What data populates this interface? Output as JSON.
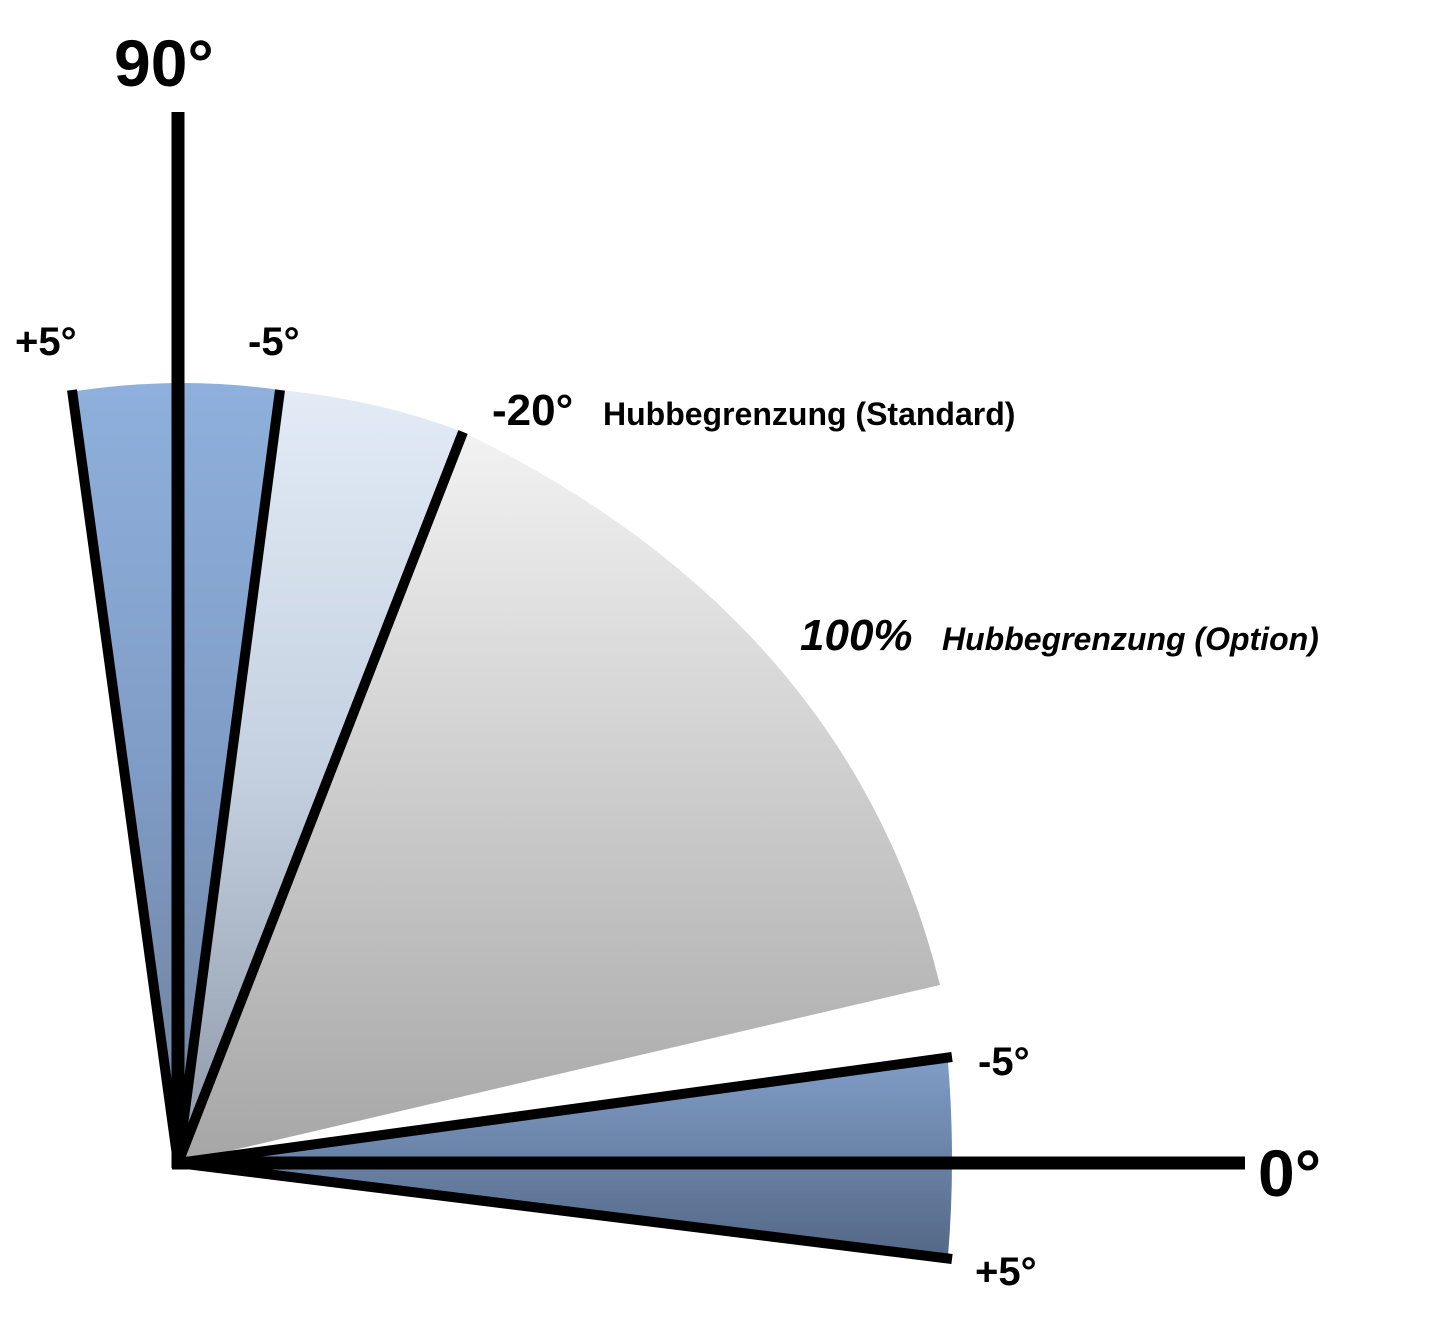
{
  "labels": {
    "axis_90": "90°",
    "axis_0": "0°",
    "top_plus5": "+5°",
    "top_minus5": "-5°",
    "minus20_value": "-20°",
    "minus20_text": "Hubbegrenzung (Standard)",
    "option_value": "100%",
    "option_text": "Hubbegrenzung (Option)",
    "bottom_minus5": "-5°",
    "bottom_plus5": "+5°"
  },
  "colors": {
    "blue_sector": "#7f9cc6",
    "light_blue_sector": "#d6e2f0",
    "gray_sector": "#c8c8c8",
    "lines": "#000000"
  }
}
